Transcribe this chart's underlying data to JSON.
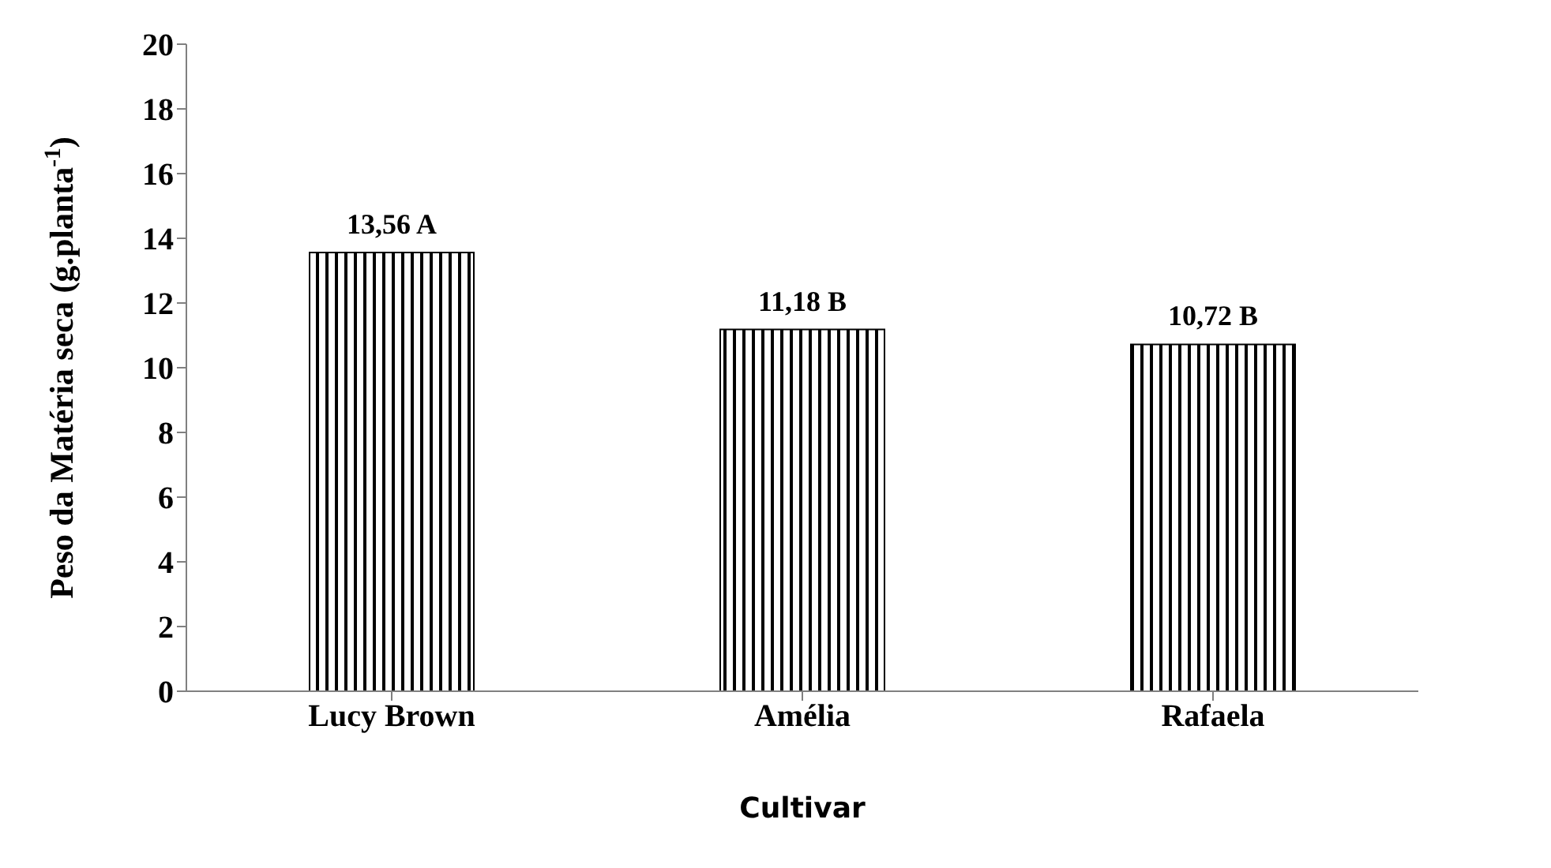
{
  "chart_data": {
    "type": "bar",
    "xlabel": "Cultivar",
    "ylabel": "Peso da Matéria seca (g.planta$^{-1}$)",
    "categories": [
      "Lucy Brown",
      "Amélia",
      "Rafaela"
    ],
    "values": [
      13.56,
      11.18,
      10.72
    ],
    "value_labels": [
      "13,56 A",
      "11,18 B",
      "10,72 B"
    ],
    "color": "#000000",
    "ylim": [
      0,
      20
    ],
    "yticks": [
      0,
      2,
      4,
      6,
      8,
      10,
      12,
      14,
      16,
      18,
      20
    ],
    "grid": false
  }
}
